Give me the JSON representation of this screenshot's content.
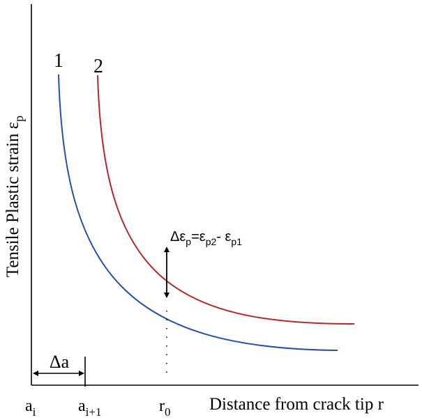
{
  "chart_data": {
    "type": "line",
    "title": "",
    "xlabel": "Distance from crack tip r",
    "ylabel": {
      "base": "Tensile Plastic strain ε",
      "sub": "p"
    },
    "series": [
      {
        "name": "1",
        "color": "#2a4fa8"
      },
      {
        "name": "2",
        "color": "#b02a2a"
      }
    ],
    "x_ticks": [
      {
        "base": "a",
        "sub": "i"
      },
      {
        "base": "a",
        "sub": "i+1"
      },
      {
        "base": "r",
        "sub": "0"
      }
    ],
    "annotations": {
      "delta_a": "Δa",
      "delta_eps": {
        "lhs_base": "Δε",
        "lhs_sub": "p",
        "eq": "=",
        "t1_base": "ε",
        "t1_sub": "p2",
        "minus": "- ",
        "t2_base": "ε",
        "t2_sub": "p1"
      }
    }
  }
}
